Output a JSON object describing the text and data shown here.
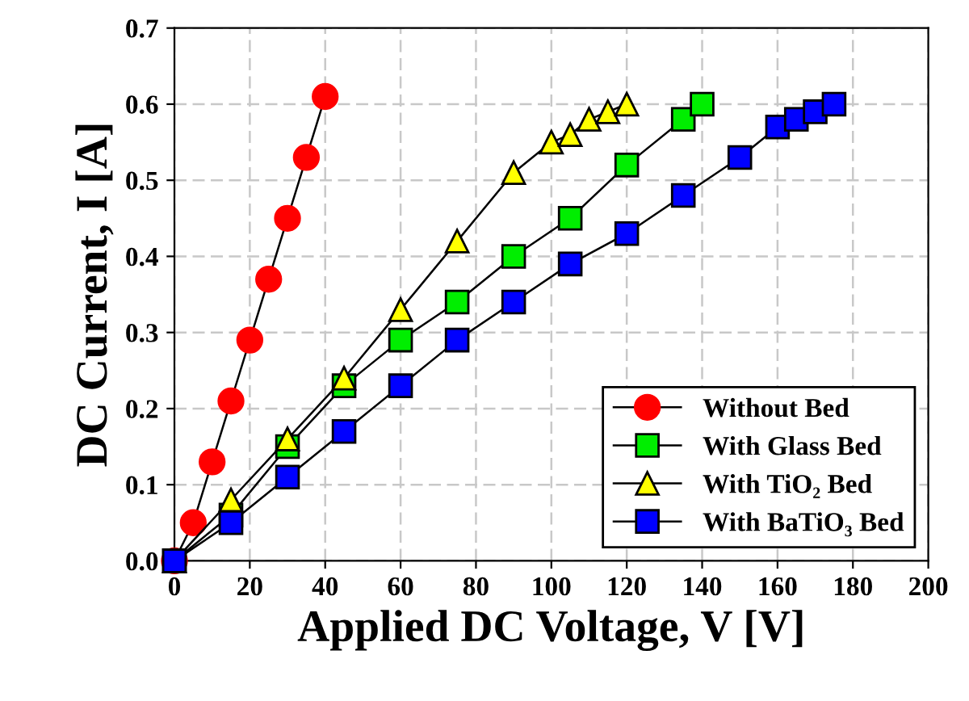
{
  "chart_data": {
    "type": "line",
    "xlabel": "Applied DC Voltage, V [V]",
    "ylabel": "DC Current, I [A]",
    "xlim": [
      0,
      200
    ],
    "xticks": [
      0,
      20,
      40,
      60,
      80,
      100,
      120,
      140,
      160,
      180,
      200
    ],
    "ylim": [
      0,
      0.7
    ],
    "yticks": [
      {
        "value": 0,
        "label": "0.0"
      },
      {
        "value": 0.1,
        "label": "0.1"
      },
      {
        "value": 0.2,
        "label": "0.2"
      },
      {
        "value": 0.3,
        "label": "0.3"
      },
      {
        "value": 0.4,
        "label": "0.4"
      },
      {
        "value": 0.5,
        "label": "0.5"
      },
      {
        "value": 0.6,
        "label": "0.6"
      },
      {
        "value": 0.7,
        "label": "0.7"
      }
    ],
    "grid": true,
    "legend": "bottom right",
    "line_style": "solid",
    "series": [
      {
        "name": "Without Bed",
        "color": "#ff0000",
        "marker": "circle",
        "x": [
          0,
          5,
          10,
          15,
          20,
          25,
          30,
          35,
          40
        ],
        "values": [
          0,
          0.05,
          0.13,
          0.21,
          0.29,
          0.37,
          0.45,
          0.53,
          0.61
        ]
      },
      {
        "name": "With Glass Bed",
        "color": "#00ee00",
        "marker": "square",
        "x": [
          0,
          15,
          30,
          45,
          60,
          75,
          90,
          105,
          120,
          135,
          140
        ],
        "values": [
          0,
          0.06,
          0.15,
          0.23,
          0.29,
          0.34,
          0.4,
          0.45,
          0.52,
          0.58,
          0.6
        ]
      },
      {
        "name": "With TiO₂ Bed",
        "color": "#ffff00",
        "marker": "triangle",
        "x": [
          0,
          15,
          30,
          45,
          60,
          75,
          90,
          100,
          105,
          110,
          115,
          120
        ],
        "values": [
          0,
          0.08,
          0.16,
          0.24,
          0.33,
          0.42,
          0.51,
          0.55,
          0.56,
          0.58,
          0.59,
          0.6
        ]
      },
      {
        "name": "With BaTiO₃ Bed",
        "color": "#0000ff",
        "marker": "square",
        "x": [
          0,
          15,
          30,
          45,
          60,
          75,
          90,
          105,
          120,
          135,
          150,
          160,
          165,
          170,
          175
        ],
        "values": [
          0,
          0.05,
          0.11,
          0.17,
          0.23,
          0.29,
          0.34,
          0.39,
          0.43,
          0.48,
          0.53,
          0.57,
          0.58,
          0.59,
          0.6
        ]
      }
    ]
  }
}
